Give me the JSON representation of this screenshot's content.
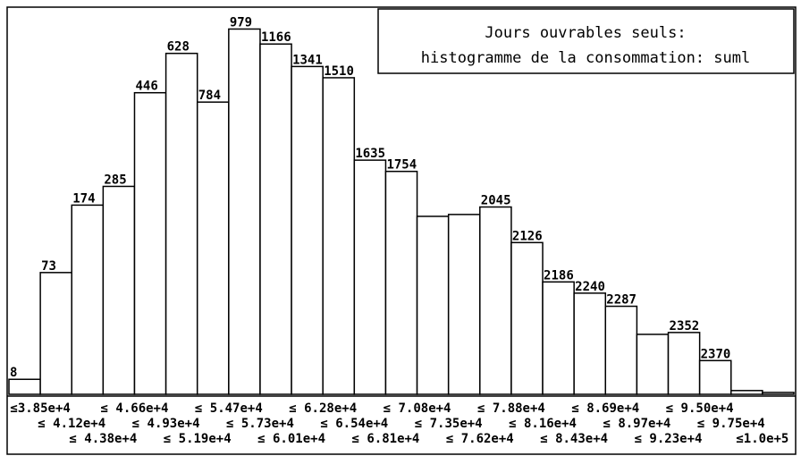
{
  "chart_data": {
    "type": "histogram",
    "title": "Jours ouvrables seuls:",
    "subtitle": "histogramme de la consommation: suml",
    "values": [
      8,
      65,
      101,
      111,
      161,
      182,
      156,
      195,
      187,
      175,
      169,
      125,
      119,
      95,
      96,
      100,
      81,
      60,
      54,
      47,
      32,
      33,
      18,
      2,
      1
    ],
    "cumulative_labels": [
      "8",
      "73",
      "174",
      "285",
      "446",
      "628",
      "784",
      "979",
      "1166",
      "1341",
      "1510",
      "1635",
      "1754",
      null,
      null,
      "2045",
      "2126",
      "2186",
      "2240",
      "2287",
      null,
      "2352",
      "2370",
      null,
      null
    ],
    "bin_edge_labels": [
      "≤3.85e+4",
      "≤ 4.12e+4",
      "≤ 4.38e+4",
      "≤ 4.66e+4",
      "≤ 4.93e+4",
      "≤ 5.19e+4",
      "≤ 5.47e+4",
      "≤ 5.73e+4",
      "≤ 6.01e+4",
      "≤ 6.28e+4",
      "≤ 6.54e+4",
      "≤ 6.81e+4",
      "≤ 7.08e+4",
      "≤ 7.35e+4",
      "≤ 7.62e+4",
      "≤ 7.88e+4",
      "≤ 8.16e+4",
      "≤ 8.43e+4",
      "≤ 8.69e+4",
      "≤ 8.97e+4",
      "≤ 9.23e+4",
      "≤ 9.50e+4",
      "≤ 9.75e+4",
      "≤1.0e+5"
    ],
    "ylim": [
      0,
      200
    ],
    "color": "#ffffff"
  }
}
